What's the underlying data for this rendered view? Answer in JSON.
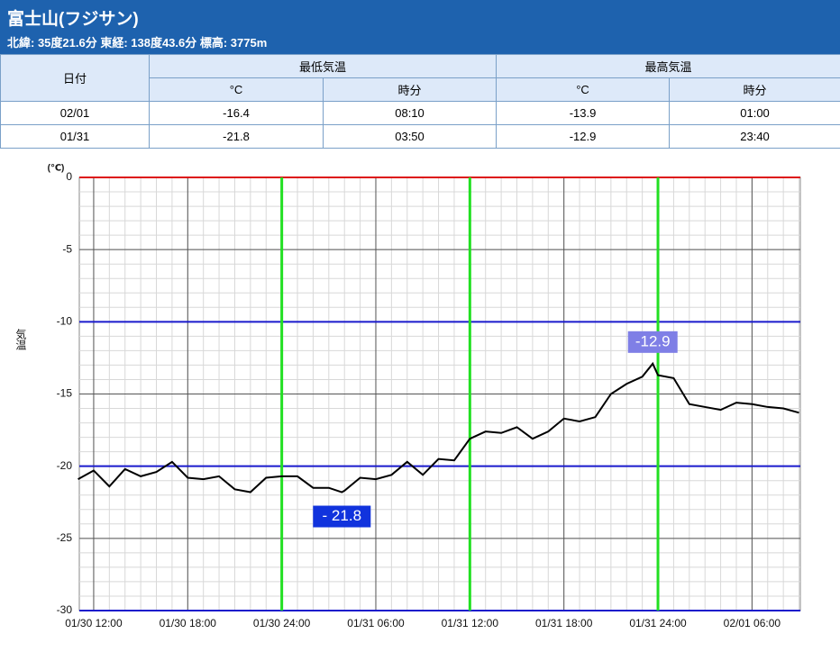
{
  "header": {
    "title": "富士山(フジサン)",
    "subtitle": "北緯: 35度21.6分 東経: 138度43.6分 標高: 3775m"
  },
  "table": {
    "date_header": "日付",
    "groups": [
      "最低気温",
      "最高気温"
    ],
    "subheaders": [
      "°C",
      "時分",
      "°C",
      "時分"
    ],
    "rows": [
      [
        "02/01",
        "-16.4",
        "08:10",
        "-13.9",
        "01:00"
      ],
      [
        "01/31",
        "-21.8",
        "03:50",
        "-12.9",
        "23:40"
      ]
    ]
  },
  "chart_data": {
    "type": "line",
    "y_label": "気温",
    "y_unit": "(℃)",
    "color": "#000000",
    "x": [
      "01/30 11:00",
      "01/30 12:00",
      "01/30 13:00",
      "01/30 14:00",
      "01/30 15:00",
      "01/30 16:00",
      "01/30 17:00",
      "01/30 18:00",
      "01/30 19:00",
      "01/30 20:00",
      "01/30 21:00",
      "01/30 22:00",
      "01/30 23:00",
      "01/30 24:00",
      "01/31 01:00",
      "01/31 02:00",
      "01/31 03:00",
      "01/31 03:50",
      "01/31 04:00",
      "01/31 05:00",
      "01/31 06:00",
      "01/31 07:00",
      "01/31 08:00",
      "01/31 09:00",
      "01/31 10:00",
      "01/31 11:00",
      "01/31 12:00",
      "01/31 13:00",
      "01/31 14:00",
      "01/31 15:00",
      "01/31 16:00",
      "01/31 17:00",
      "01/31 18:00",
      "01/31 19:00",
      "01/31 20:00",
      "01/31 21:00",
      "01/31 22:00",
      "01/31 23:00",
      "01/31 23:40",
      "01/31 24:00",
      "02/01 01:00",
      "02/01 02:00",
      "02/01 03:00",
      "02/01 04:00",
      "02/01 05:00",
      "02/01 06:00",
      "02/01 07:00",
      "02/01 08:00",
      "02/01 09:00"
    ],
    "values": [
      -20.9,
      -20.3,
      -21.4,
      -20.2,
      -20.7,
      -20.4,
      -19.7,
      -20.8,
      -20.9,
      -20.7,
      -21.6,
      -21.8,
      -20.8,
      -20.7,
      -20.7,
      -21.5,
      -21.5,
      -21.8,
      -21.7,
      -20.8,
      -20.9,
      -20.6,
      -19.7,
      -20.6,
      -19.5,
      -19.6,
      -18.1,
      -17.6,
      -17.7,
      -17.3,
      -18.1,
      -17.6,
      -16.7,
      -16.9,
      -16.6,
      -15.0,
      -14.3,
      -13.8,
      -12.9,
      -13.7,
      -13.9,
      -15.7,
      -15.9,
      -16.1,
      -15.6,
      -15.7,
      -15.9,
      -16.0,
      -16.3
    ],
    "xlim": [
      "01/30 11:05",
      "02/01 09:05"
    ],
    "xticks": [
      "01/30 12:00",
      "01/30 18:00",
      "01/30 24:00",
      "01/31 06:00",
      "01/31 12:00",
      "01/31 18:00",
      "01/31 24:00",
      "02/01 06:00"
    ],
    "ylim": [
      -30,
      0
    ],
    "yticks": [
      0,
      -5,
      -10,
      -15,
      -20,
      -25,
      -30
    ],
    "grid": true,
    "hlines": [
      {
        "value": 0,
        "color": "#dd1111"
      },
      {
        "value": -10,
        "color": "#1a1acc"
      },
      {
        "value": -20,
        "color": "#1a1acc"
      },
      {
        "value": -30,
        "color": "#1a1acc"
      }
    ],
    "vlines": [
      "01/30 24:00",
      "01/31 12:00",
      "01/31 24:00"
    ],
    "vline_color": "#22e022",
    "annotations": [
      {
        "text": "-12.9",
        "x": "01/31 23:40",
        "y": -12.9,
        "color": "#7f7fe6",
        "position": "above"
      },
      {
        "text": "- 21.8",
        "x": "01/31 03:50",
        "y": -21.8,
        "color": "#1133dd",
        "position": "below"
      }
    ]
  }
}
